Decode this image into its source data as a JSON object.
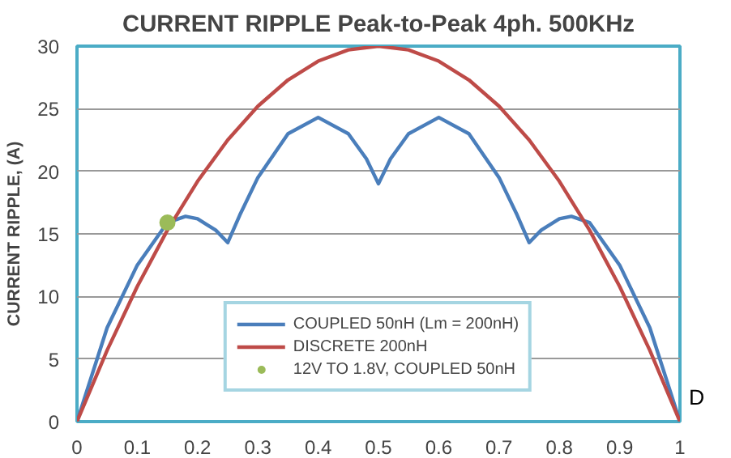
{
  "chart_data": {
    "type": "line",
    "title": "CURRENT RIPPLE Peak-to-Peak 4ph. 500KHz",
    "xlabel": "D",
    "ylabel": "CURRENT RIPPLE, (A)",
    "xlim": [
      0,
      1
    ],
    "ylim": [
      0,
      30
    ],
    "xticks": [
      0,
      0.1,
      0.2,
      0.3,
      0.4,
      0.5,
      0.6,
      0.7,
      0.8,
      0.9,
      1
    ],
    "yticks": [
      0,
      5,
      10,
      15,
      20,
      25,
      30
    ],
    "grid": "y",
    "legend": "bottom",
    "series": [
      {
        "name": "COUPLED 50nH (Lm = 200nH)",
        "color": "#4a7ebb",
        "x": [
          0,
          0.05,
          0.1,
          0.15,
          0.18,
          0.2,
          0.23,
          0.25,
          0.27,
          0.3,
          0.35,
          0.4,
          0.45,
          0.48,
          0.5,
          0.52,
          0.55,
          0.6,
          0.65,
          0.7,
          0.73,
          0.75,
          0.77,
          0.8,
          0.82,
          0.85,
          0.9,
          0.95,
          1
        ],
        "values": [
          0,
          7.5,
          12.5,
          15.9,
          16.4,
          16.2,
          15.3,
          14.3,
          16.5,
          19.5,
          23,
          24.3,
          23,
          21,
          19,
          21,
          23,
          24.3,
          23,
          19.5,
          16.5,
          14.3,
          15.3,
          16.2,
          16.4,
          15.9,
          12.5,
          7.5,
          0
        ]
      },
      {
        "name": "DISCRETE 200nH",
        "color": "#be4b48",
        "x": [
          0,
          0.05,
          0.1,
          0.15,
          0.2,
          0.25,
          0.3,
          0.35,
          0.4,
          0.45,
          0.5,
          0.55,
          0.6,
          0.65,
          0.7,
          0.75,
          0.8,
          0.85,
          0.9,
          0.95,
          1
        ],
        "values": [
          0,
          5.7,
          10.8,
          15.3,
          19.2,
          22.5,
          25.2,
          27.3,
          28.8,
          29.7,
          30,
          29.7,
          28.8,
          27.3,
          25.2,
          22.5,
          19.2,
          15.3,
          10.8,
          5.7,
          0
        ]
      },
      {
        "name": "12V TO 1.8V, COUPLED 50nH",
        "type": "scatter",
        "marker": "circle",
        "color": "#9bbb59",
        "x": [
          0.15
        ],
        "values": [
          15.9
        ]
      }
    ]
  }
}
